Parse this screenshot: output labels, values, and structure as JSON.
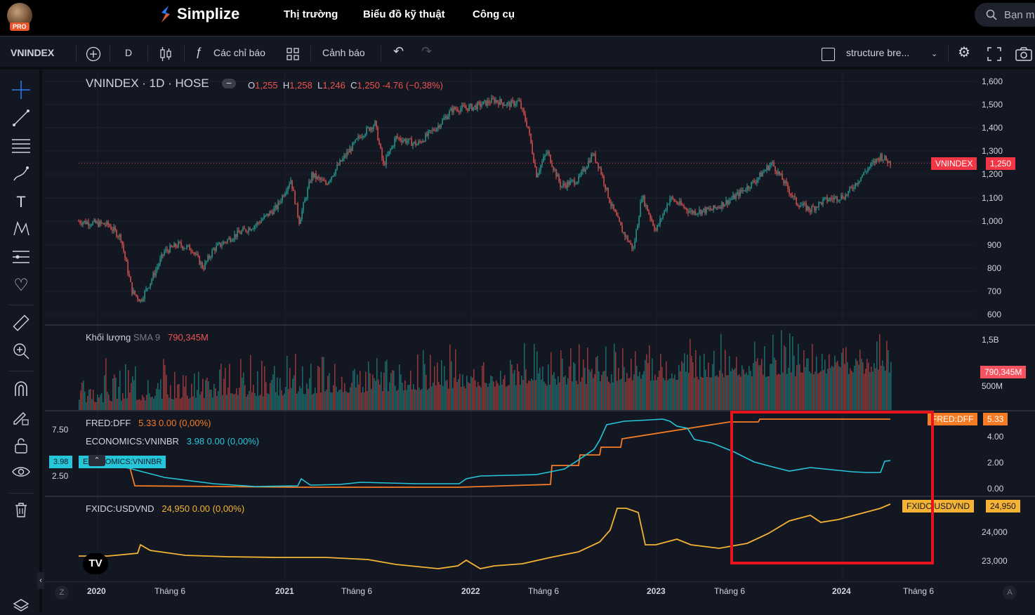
{
  "topbar": {
    "pro_badge": "PRO",
    "logo_text": "Simplize",
    "nav": [
      "Thị trường",
      "Biểu đồ kỹ thuật",
      "Công cụ"
    ],
    "search_placeholder": "Bạn m"
  },
  "toolbar": {
    "symbol": "VNINDEX",
    "interval": "D",
    "indicators_label": "Các chỉ báo",
    "alerts_label": "Cảnh báo",
    "layout_name": "structure bre..."
  },
  "main_pane": {
    "title": "VNINDEX · 1D · HOSE",
    "ohlc": {
      "o_label": "O",
      "o": "1,255",
      "h_label": "H",
      "h": "1,258",
      "l_label": "L",
      "l": "1,246",
      "c_label": "C",
      "c": "1,250",
      "change": "-4.76 (−0,38%)"
    },
    "price_axis": [
      "1,600",
      "1,500",
      "1,400",
      "1,300",
      "1,200",
      "1,100",
      "1,000",
      "900",
      "800",
      "700",
      "600"
    ],
    "last_tag_name": "VNINDEX",
    "last_tag_value": "1,250"
  },
  "volume_pane": {
    "title": "Khối lượng",
    "sma": "SMA 9",
    "value": "790,345M",
    "axis": [
      "1,5B",
      "500M"
    ],
    "tag_value": "790,345M"
  },
  "rates_pane": {
    "dff_label": "FRED:DFF",
    "dff_value": "5.33  0.00 (0,00%)",
    "vninbr_label": "ECONOMICS:VNINBR",
    "vninbr_value": "3.98  0.00 (0,00%)",
    "left_axis": [
      "7.50",
      "2.50"
    ],
    "left_tag_value": "3.98",
    "left_tag_name": "ECONOMICS:VNINBR",
    "right_axis": [
      "4.00",
      "2.00",
      "0.00"
    ],
    "dff_tag_name": "FRED:DFF",
    "dff_tag_value": "5.33"
  },
  "fx_pane": {
    "label": "FXIDC:USDVND",
    "value": "24,950  0.00 (0,00%)",
    "axis": [
      "24,000",
      "23,000"
    ],
    "tag_name": "FXIDC:USDVND",
    "tag_value": "24,950"
  },
  "time_axis": [
    "2020",
    "Tháng 6",
    "2021",
    "Tháng 6",
    "2022",
    "Tháng 6",
    "2023",
    "Tháng 6",
    "2024",
    "Tháng 6"
  ],
  "axis_buttons": {
    "left": "Z",
    "right": "A"
  },
  "colors": {
    "up": "#26a69a",
    "down": "#ef5350",
    "dff": "#f57c24",
    "vninbr": "#26c6da",
    "usdvnd": "#f5b335",
    "highlight": "#e6141c"
  }
}
